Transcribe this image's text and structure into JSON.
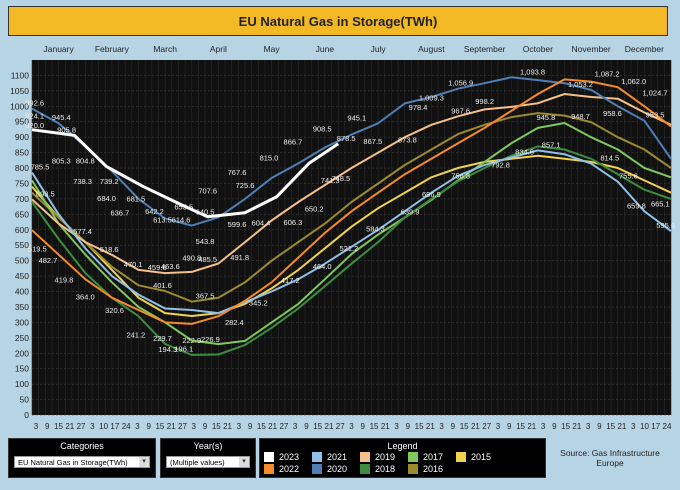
{
  "header": {
    "title": "EU Natural Gas in Storage(TWh)"
  },
  "chart_data": {
    "type": "line",
    "title": "EU Natural Gas in Storage(TWh)",
    "ylim": [
      0,
      1150
    ],
    "y_ticks": [
      0,
      50,
      100,
      150,
      200,
      250,
      300,
      350,
      400,
      450,
      500,
      550,
      600,
      650,
      700,
      750,
      800,
      850,
      900,
      950,
      1000,
      1050,
      1100
    ],
    "months": [
      "January",
      "February",
      "March",
      "April",
      "May",
      "June",
      "July",
      "August",
      "September",
      "October",
      "November",
      "December"
    ],
    "day_ticks": [
      "3",
      "9",
      "15",
      "21",
      "27",
      "3",
      "10",
      "17",
      "24",
      "3",
      "9",
      "15",
      "21",
      "27",
      "3",
      "9",
      "15",
      "21",
      "3",
      "9",
      "15",
      "21",
      "27",
      "3",
      "9",
      "15",
      "21",
      "27",
      "3",
      "9",
      "15",
      "21",
      "3",
      "9",
      "15",
      "21",
      "3",
      "9",
      "15",
      "21",
      "27",
      "3",
      "9",
      "15",
      "21",
      "3",
      "9",
      "15",
      "21",
      "3",
      "9",
      "15",
      "21",
      "3",
      "10",
      "17",
      "24"
    ],
    "series": [
      {
        "name": "2023",
        "color": "#ffffff",
        "x": [
          0,
          0.8,
          1.4,
          2.1,
          2.8,
          3.3,
          4.0,
          4.6,
          5.2,
          5.75
        ],
        "values": [
          924.1,
          905.8,
          804.8,
          739.2,
          681.5,
          642.2,
          655.5,
          707.6,
          815.0,
          878.5
        ]
      },
      {
        "name": "2022",
        "color": "#f58b2a",
        "x": [
          0,
          0.5,
          1,
          1.5,
          2,
          2.5,
          3,
          3.5,
          4,
          4.5,
          5,
          5.5,
          6,
          6.5,
          7,
          7.5,
          8,
          8.5,
          9,
          9.5,
          10,
          10.5,
          11,
          11.5,
          12
        ],
        "values": [
          598.5,
          519.5,
          440,
          380,
          340,
          300,
          295,
          320,
          370,
          430,
          510,
          590,
          660,
          720,
          780,
          830,
          880,
          930,
          985,
          1040,
          1087.2,
          1080,
          1062.0,
          1000,
          935
        ]
      },
      {
        "name": "2021",
        "color": "#8fc1e8",
        "x": [
          0,
          0.5,
          1,
          1.5,
          2,
          2.5,
          3,
          3.5,
          4,
          4.5,
          5,
          5.5,
          6,
          6.5,
          7,
          7.5,
          8,
          8.5,
          9,
          9.5,
          10,
          10.5,
          11,
          11.5,
          12
        ],
        "values": [
          785.5,
          650,
          540,
          450,
          390,
          345,
          340,
          330,
          365,
          400,
          440,
          490,
          545,
          600,
          660,
          720,
          775,
          810,
          834.6,
          857.1,
          845,
          814.5,
          755.6,
          659.8,
          595.6
        ]
      },
      {
        "name": "2020",
        "color": "#4f7fb5",
        "x": [
          0,
          0.5,
          1,
          1.5,
          2,
          2.5,
          3,
          3.5,
          4,
          4.5,
          5,
          5.5,
          6,
          6.5,
          7,
          7.5,
          8,
          8.5,
          9,
          9.5,
          10,
          10.5,
          11,
          11.5,
          12
        ],
        "values": [
          992.6,
          945.4,
          870,
          790,
          700,
          636.7,
          613.5,
          640.5,
          700,
          767.6,
          815.0,
          866.7,
          908.5,
          945.1,
          1009.3,
          1030,
          1056.9,
          1075,
          1093.8,
          1085,
          1075,
          1053.2,
          1000,
          953.5,
          830
        ]
      },
      {
        "name": "2019",
        "color": "#f5c08a",
        "x": [
          0,
          0.5,
          1,
          1.5,
          2,
          2.5,
          3,
          3.5,
          4,
          4.5,
          5,
          5.5,
          6,
          6.5,
          7,
          7.5,
          8,
          8.5,
          9,
          9.5,
          10,
          10.5,
          11,
          11.5,
          12
        ],
        "values": [
          698.5,
          620,
          560,
          518.6,
          470.1,
          459.6,
          463.6,
          490.8,
          560,
          630,
          690,
          745,
          800,
          850,
          900,
          940,
          967.6,
          990,
          998.2,
          1010,
          1040,
          1030,
          1024.7,
          980,
          940
        ]
      },
      {
        "name": "2018",
        "color": "#3d8c40",
        "x": [
          0,
          0.5,
          1,
          1.5,
          2,
          2.5,
          3,
          3.5,
          4,
          4.5,
          5,
          5.5,
          6,
          6.5,
          7,
          7.5,
          8,
          8.5,
          9,
          9.5,
          10,
          10.5,
          11,
          11.5,
          12
        ],
        "values": [
          690,
          570,
          460,
          380,
          320,
          230,
          194.3,
          196.1,
          226.9,
          282.4,
          345.2,
          417.2,
          490,
          560,
          640,
          700,
          756.8,
          800,
          840,
          870,
          860,
          830,
          780,
          730,
          700
        ]
      },
      {
        "name": "2017",
        "color": "#7fc85a",
        "x": [
          0,
          0.5,
          1,
          1.5,
          2,
          2.5,
          3,
          3.5,
          4,
          4.5,
          5,
          5.5,
          6,
          6.5,
          7,
          7.5,
          8,
          8.5,
          9,
          9.5,
          10,
          10.5,
          11,
          11.5,
          12
        ],
        "values": [
          760,
          620,
          520,
          430,
          350,
          300,
          241.2,
          229.7,
          240,
          300,
          360,
          440,
          521.2,
          584.3,
          639.9,
          696.9,
          760,
          820,
          880,
          930,
          945.8,
          900,
          860,
          800,
          770
        ]
      },
      {
        "name": "2016",
        "color": "#9c8a2e",
        "x": [
          0,
          0.5,
          1,
          1.5,
          2,
          2.5,
          3,
          3.5,
          4,
          4.5,
          5,
          5.5,
          6,
          6.5,
          7,
          7.5,
          8,
          8.5,
          9,
          9.5,
          10,
          10.5,
          11,
          11.5,
          12
        ],
        "values": [
          720,
          640,
          560,
          480,
          420,
          401.6,
          367.5,
          380,
          430,
          500,
          560,
          620,
          690,
          750,
          810,
          860,
          910,
          940,
          965,
          978,
          970,
          948.7,
          900,
          860,
          800
        ]
      },
      {
        "name": "2015",
        "color": "#f0d24e",
        "x": [
          0,
          0.5,
          1,
          1.5,
          2,
          2.5,
          3,
          3.5,
          4,
          4.5,
          5,
          5.5,
          6,
          6.5,
          7,
          7.5,
          8,
          8.5,
          9,
          9.5,
          10,
          10.5,
          11,
          11.5,
          12
        ],
        "values": [
          740,
          640,
          560,
          470,
          380,
          330,
          320.6,
          330,
          360,
          410,
          470,
          540,
          610,
          670,
          720,
          770,
          800,
          820,
          830,
          840,
          830,
          820,
          800,
          760,
          720
        ]
      }
    ],
    "data_labels": [
      {
        "text": "992.6",
        "x": 0.05,
        "y": 992.6
      },
      {
        "text": "945.4",
        "x": 0.55,
        "y": 945.4
      },
      {
        "text": "920.0",
        "x": 0.05,
        "y": 920.0
      },
      {
        "text": "905.8",
        "x": 0.65,
        "y": 905.8
      },
      {
        "text": "924.1",
        "x": 0.05,
        "y": 950
      },
      {
        "text": "785.5",
        "x": 0.15,
        "y": 785.5
      },
      {
        "text": "805.3",
        "x": 0.55,
        "y": 805.3
      },
      {
        "text": "804.8",
        "x": 1.0,
        "y": 804.8
      },
      {
        "text": "739.2",
        "x": 1.45,
        "y": 739.2
      },
      {
        "text": "738.3",
        "x": 0.95,
        "y": 738.3
      },
      {
        "text": "698.5",
        "x": 0.25,
        "y": 698.5
      },
      {
        "text": "681.5",
        "x": 1.95,
        "y": 681.5
      },
      {
        "text": "684.0",
        "x": 1.4,
        "y": 684.0
      },
      {
        "text": "636.7",
        "x": 1.65,
        "y": 636.7
      },
      {
        "text": "642.2",
        "x": 2.3,
        "y": 642.2
      },
      {
        "text": "655.5",
        "x": 2.85,
        "y": 655.5
      },
      {
        "text": "707.6",
        "x": 3.3,
        "y": 707.6
      },
      {
        "text": "613.5",
        "x": 2.45,
        "y": 613.5
      },
      {
        "text": "614.6",
        "x": 2.8,
        "y": 614.6
      },
      {
        "text": "640.5",
        "x": 3.25,
        "y": 640.5
      },
      {
        "text": "767.6",
        "x": 3.85,
        "y": 767.6
      },
      {
        "text": "815.0",
        "x": 4.45,
        "y": 815.0
      },
      {
        "text": "866.7",
        "x": 4.9,
        "y": 866.7
      },
      {
        "text": "908.5",
        "x": 5.45,
        "y": 908.5
      },
      {
        "text": "878.5",
        "x": 5.9,
        "y": 878.5
      },
      {
        "text": "945.1",
        "x": 6.1,
        "y": 945.1
      },
      {
        "text": "725.6",
        "x": 4.0,
        "y": 725.6
      },
      {
        "text": "599.6",
        "x": 3.85,
        "y": 599.6
      },
      {
        "text": "543.8",
        "x": 3.25,
        "y": 543.8
      },
      {
        "text": "604.4",
        "x": 4.3,
        "y": 604.4
      },
      {
        "text": "606.3",
        "x": 4.9,
        "y": 606.3
      },
      {
        "text": "650.2",
        "x": 5.3,
        "y": 650.2
      },
      {
        "text": "741.3",
        "x": 5.6,
        "y": 741.3
      },
      {
        "text": "748.5",
        "x": 5.8,
        "y": 748.5
      },
      {
        "text": "867.5",
        "x": 6.4,
        "y": 867.5
      },
      {
        "text": "873.8",
        "x": 7.05,
        "y": 873.8
      },
      {
        "text": "978.4",
        "x": 7.25,
        "y": 978.4
      },
      {
        "text": "1,009.3",
        "x": 7.5,
        "y": 1009.3
      },
      {
        "text": "1,056.9",
        "x": 8.05,
        "y": 1056.9
      },
      {
        "text": "967.6",
        "x": 8.05,
        "y": 967.6
      },
      {
        "text": "998.2",
        "x": 8.5,
        "y": 998.2
      },
      {
        "text": "1,093.8",
        "x": 9.4,
        "y": 1093.8
      },
      {
        "text": "1,087.2",
        "x": 10.8,
        "y": 1087.2
      },
      {
        "text": "1,062.0",
        "x": 11.3,
        "y": 1062.0
      },
      {
        "text": "1,053.2",
        "x": 10.3,
        "y": 1053.2
      },
      {
        "text": "1,024.7",
        "x": 11.7,
        "y": 1024.7
      },
      {
        "text": "953.5",
        "x": 11.7,
        "y": 953.5
      },
      {
        "text": "958.6",
        "x": 10.9,
        "y": 958.6
      },
      {
        "text": "948.7",
        "x": 10.3,
        "y": 948.7
      },
      {
        "text": "945.8",
        "x": 9.65,
        "y": 945.8
      },
      {
        "text": "857.1",
        "x": 9.75,
        "y": 857.1
      },
      {
        "text": "834.6",
        "x": 9.25,
        "y": 834.6
      },
      {
        "text": "814.5",
        "x": 10.85,
        "y": 814.5
      },
      {
        "text": "792.8",
        "x": 8.8,
        "y": 792.8
      },
      {
        "text": "756.8",
        "x": 8.05,
        "y": 756.8
      },
      {
        "text": "755.6",
        "x": 11.2,
        "y": 755.6
      },
      {
        "text": "696.9",
        "x": 7.5,
        "y": 696.9
      },
      {
        "text": "665.1",
        "x": 11.8,
        "y": 665.1
      },
      {
        "text": "659.8",
        "x": 11.35,
        "y": 659.8
      },
      {
        "text": "639.9",
        "x": 7.1,
        "y": 639.9
      },
      {
        "text": "595.6",
        "x": 11.9,
        "y": 595.6
      },
      {
        "text": "584.3",
        "x": 6.45,
        "y": 584.3
      },
      {
        "text": "521.2",
        "x": 5.95,
        "y": 521.2
      },
      {
        "text": "464.0",
        "x": 5.45,
        "y": 464.0
      },
      {
        "text": "417.2",
        "x": 4.85,
        "y": 417.2
      },
      {
        "text": "345.2",
        "x": 4.25,
        "y": 345.2
      },
      {
        "text": "282.4",
        "x": 3.8,
        "y": 282.4
      },
      {
        "text": "226.9",
        "x": 3.35,
        "y": 226.9
      },
      {
        "text": "491.8",
        "x": 3.9,
        "y": 491.8
      },
      {
        "text": "485.5",
        "x": 3.3,
        "y": 485.5
      },
      {
        "text": "367.5",
        "x": 3.25,
        "y": 367.5
      },
      {
        "text": "490.8",
        "x": 3.0,
        "y": 490.8
      },
      {
        "text": "463.6",
        "x": 2.6,
        "y": 463.6
      },
      {
        "text": "470.1",
        "x": 1.9,
        "y": 470.1
      },
      {
        "text": "459.6",
        "x": 2.35,
        "y": 459.6
      },
      {
        "text": "401.6",
        "x": 2.45,
        "y": 401.6
      },
      {
        "text": "518.6",
        "x": 1.45,
        "y": 518.6
      },
      {
        "text": "577.4",
        "x": 0.95,
        "y": 577.4
      },
      {
        "text": "519.5",
        "x": 0.1,
        "y": 519.5
      },
      {
        "text": "482.7",
        "x": 0.3,
        "y": 482.7
      },
      {
        "text": "419.8",
        "x": 0.6,
        "y": 419.8
      },
      {
        "text": "364.0",
        "x": 1.0,
        "y": 364.0
      },
      {
        "text": "320.6",
        "x": 1.55,
        "y": 320.6
      },
      {
        "text": "241.2",
        "x": 1.95,
        "y": 241.2
      },
      {
        "text": "229.7",
        "x": 2.45,
        "y": 229.7
      },
      {
        "text": "222.9",
        "x": 3.0,
        "y": 222.9
      },
      {
        "text": "194.3",
        "x": 2.55,
        "y": 194.3
      },
      {
        "text": "196.1",
        "x": 2.85,
        "y": 196.1
      }
    ]
  },
  "filters": {
    "categories": {
      "title": "Categories",
      "value": "EU Natural Gas in Storage(TWh)"
    },
    "years": {
      "title": "Year(s)",
      "value": "(Multiple values)"
    }
  },
  "legend": {
    "title": "Legend",
    "items": [
      {
        "label": "2023",
        "color": "#ffffff"
      },
      {
        "label": "2022",
        "color": "#f58b2a"
      },
      {
        "label": "2021",
        "color": "#8fc1e8"
      },
      {
        "label": "2020",
        "color": "#4f7fb5"
      },
      {
        "label": "2019",
        "color": "#f5c08a"
      },
      {
        "label": "2018",
        "color": "#3d8c40"
      },
      {
        "label": "2017",
        "color": "#7fc85a"
      },
      {
        "label": "2016",
        "color": "#9c8a2e"
      },
      {
        "label": "2015",
        "color": "#f0d24e"
      }
    ]
  },
  "source": "Source: Gas Infrastructure Europe"
}
